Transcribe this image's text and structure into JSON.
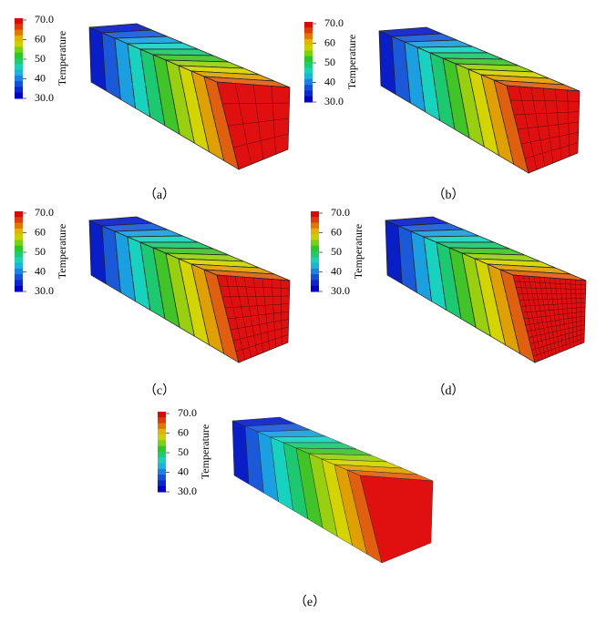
{
  "panels": [
    {
      "caption": "（a）",
      "colorbar": {
        "title": "Temperature",
        "labels": [
          "70.0",
          "60",
          "50",
          "40",
          "30.0"
        ]
      }
    },
    {
      "caption": "（b）",
      "colorbar": {
        "title": "Temperature",
        "labels": [
          "70.0",
          "60",
          "50",
          "40",
          "30.0"
        ]
      }
    },
    {
      "caption": "（c）",
      "colorbar": {
        "title": "Temperature",
        "labels": [
          "70.0",
          "60",
          "50",
          "40",
          "30.0"
        ]
      }
    },
    {
      "caption": "（d）",
      "colorbar": {
        "title": "Temperature",
        "labels": [
          "70.0",
          "60",
          "50",
          "40",
          "30.0"
        ]
      }
    },
    {
      "caption": "（e）",
      "colorbar": {
        "title": "Temperature",
        "labels": [
          "70.0",
          "60",
          "50",
          "40",
          "30.0"
        ]
      }
    }
  ]
}
